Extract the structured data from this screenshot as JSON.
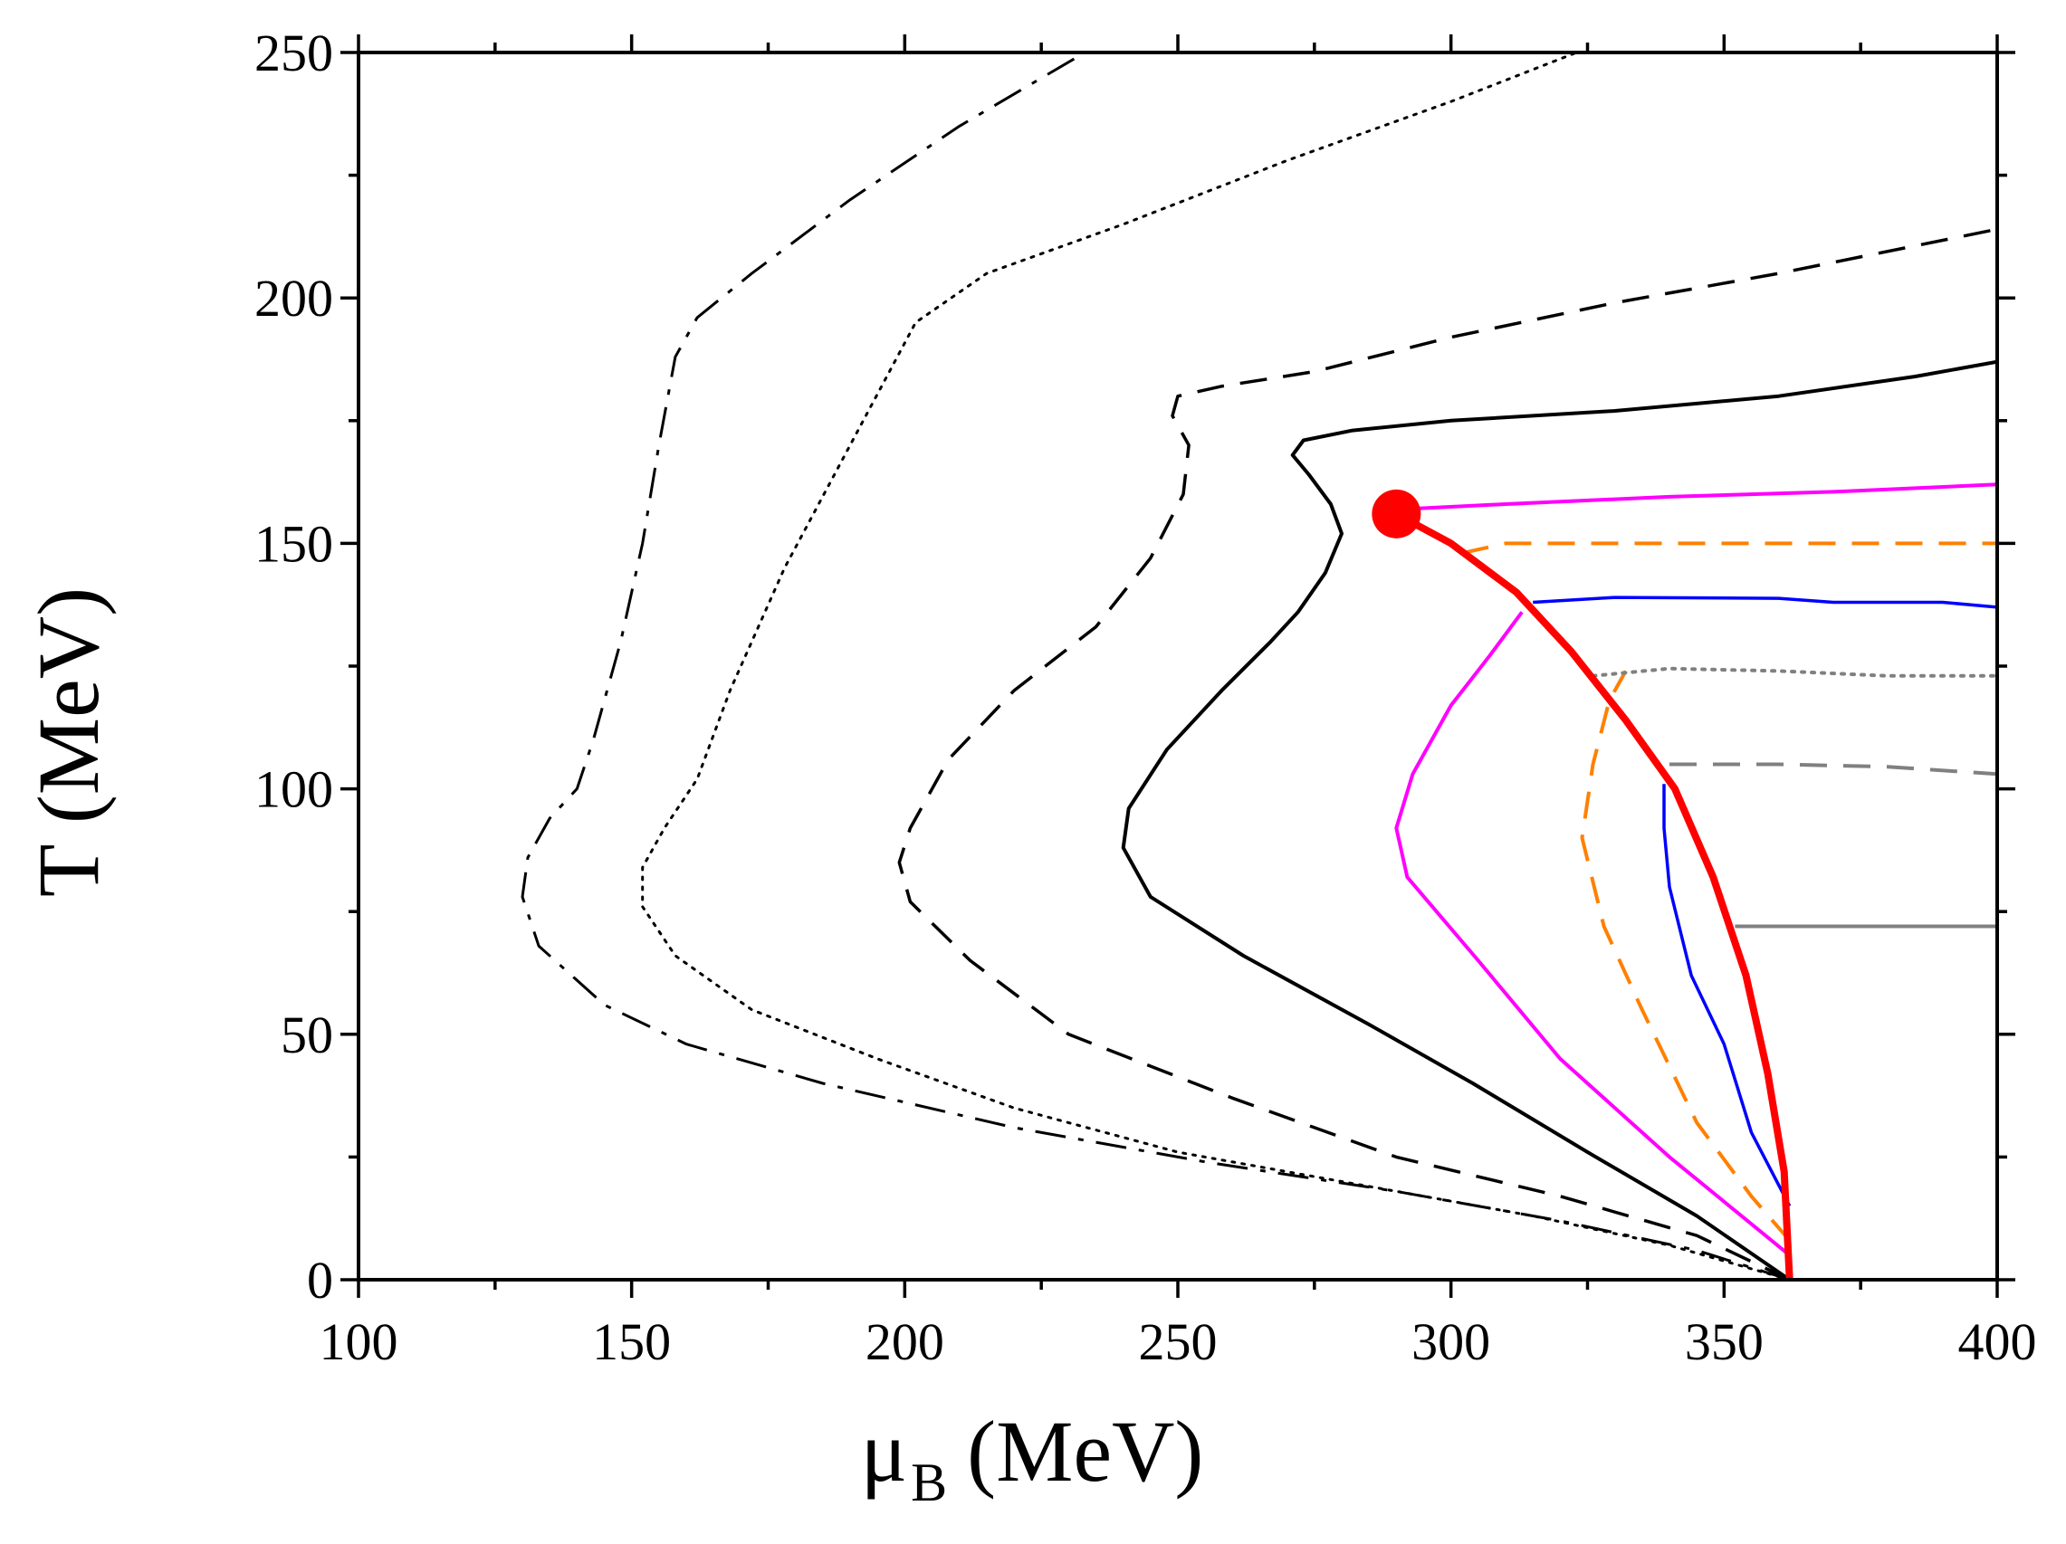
{
  "chart_data": {
    "type": "line",
    "title": "",
    "xlabel": "μ",
    "xlabel_subscript": "B",
    "xlabel_unit": "(MeV)",
    "ylabel": "T (MeV)",
    "xlim": [
      100,
      400
    ],
    "ylim": [
      0,
      250
    ],
    "x_ticks": [
      100,
      150,
      200,
      250,
      300,
      350,
      400
    ],
    "x_tick_labels": [
      "100",
      "150",
      "200",
      "250",
      "300",
      "350",
      "400"
    ],
    "y_ticks": [
      0,
      50,
      100,
      150,
      200,
      250
    ],
    "y_tick_labels": [
      "0",
      "50",
      "100",
      "150",
      "200",
      "250"
    ],
    "grid": false,
    "legend": "none",
    "series": [
      {
        "name": "dash-dot black",
        "color": "#000000",
        "dash": "dashdot",
        "width": 3,
        "points": [
          [
            362,
            0
          ],
          [
            345,
            6
          ],
          [
            320,
            12
          ],
          [
            290,
            18
          ],
          [
            255,
            24
          ],
          [
            220,
            31
          ],
          [
            185,
            40
          ],
          [
            160,
            48
          ],
          [
            145,
            56
          ],
          [
            133,
            68
          ],
          [
            130,
            78
          ],
          [
            131,
            86
          ],
          [
            135,
            94
          ],
          [
            140,
            100
          ],
          [
            143,
            110
          ],
          [
            148,
            130
          ],
          [
            152,
            150
          ],
          [
            155,
            170
          ],
          [
            158,
            188
          ],
          [
            162,
            196
          ],
          [
            172,
            205
          ],
          [
            190,
            220
          ],
          [
            210,
            235
          ],
          [
            233,
            250
          ]
        ]
      },
      {
        "name": "dotted black",
        "color": "#000000",
        "dash": "dotted",
        "width": 3,
        "points": [
          [
            362,
            0
          ],
          [
            340,
            7
          ],
          [
            315,
            13
          ],
          [
            285,
            19
          ],
          [
            250,
            26
          ],
          [
            220,
            35
          ],
          [
            195,
            45
          ],
          [
            172,
            55
          ],
          [
            158,
            66
          ],
          [
            152,
            76
          ],
          [
            152,
            84
          ],
          [
            156,
            92
          ],
          [
            162,
            102
          ],
          [
            168,
            120
          ],
          [
            178,
            145
          ],
          [
            190,
            170
          ],
          [
            202,
            195
          ],
          [
            215,
            205
          ],
          [
            240,
            215
          ],
          [
            270,
            228
          ],
          [
            300,
            240
          ],
          [
            323,
            250
          ]
        ]
      },
      {
        "name": "dashed black",
        "color": "#000000",
        "dash": "dashed",
        "width": 3.5,
        "points": [
          [
            362,
            0
          ],
          [
            345,
            9
          ],
          [
            320,
            17
          ],
          [
            290,
            25
          ],
          [
            260,
            37
          ],
          [
            230,
            50
          ],
          [
            212,
            65
          ],
          [
            201,
            77
          ],
          [
            199,
            85
          ],
          [
            201,
            92
          ],
          [
            208,
            106
          ],
          [
            220,
            120
          ],
          [
            235,
            133
          ],
          [
            245,
            147
          ],
          [
            251,
            160
          ],
          [
            252,
            170
          ],
          [
            249,
            176
          ],
          [
            250,
            180
          ],
          [
            258,
            182
          ],
          [
            275,
            185
          ],
          [
            300,
            192
          ],
          [
            330,
            199
          ],
          [
            360,
            205
          ],
          [
            400,
            214
          ]
        ]
      },
      {
        "name": "solid black",
        "color": "#000000",
        "dash": "solid",
        "width": 4,
        "points": [
          [
            362,
            0
          ],
          [
            345,
            13
          ],
          [
            325,
            26
          ],
          [
            304,
            40
          ],
          [
            285,
            52
          ],
          [
            262,
            66
          ],
          [
            245,
            78
          ],
          [
            240,
            88
          ],
          [
            241,
            96
          ],
          [
            248,
            108
          ],
          [
            258,
            120
          ],
          [
            267,
            130
          ],
          [
            272,
            136
          ],
          [
            277,
            144
          ],
          [
            280,
            152
          ],
          [
            278,
            158
          ],
          [
            274,
            164
          ],
          [
            271,
            168
          ],
          [
            273,
            171
          ],
          [
            282,
            173
          ],
          [
            300,
            175
          ],
          [
            330,
            177
          ],
          [
            360,
            180
          ],
          [
            385,
            184
          ],
          [
            400,
            187
          ]
        ]
      },
      {
        "name": "magenta",
        "color": "#ff00ff",
        "dash": "solid",
        "width": 4,
        "points": [
          [
            362,
            5
          ],
          [
            340,
            25
          ],
          [
            320,
            45
          ],
          [
            305,
            65
          ],
          [
            292,
            82
          ],
          [
            290,
            92
          ],
          [
            293,
            103
          ],
          [
            300,
            117
          ],
          [
            307,
            127
          ],
          [
            313,
            136
          ]
        ]
      },
      {
        "name": "magenta upper",
        "color": "#ff00ff",
        "dash": "solid",
        "width": 4,
        "points": [
          [
            292,
            157
          ],
          [
            310,
            158
          ],
          [
            340,
            159.5
          ],
          [
            370,
            160.5
          ],
          [
            400,
            162
          ]
        ]
      },
      {
        "name": "orange dashed",
        "color": "#ff8000",
        "dash": "dashed",
        "width": 4,
        "points": [
          [
            362,
            8
          ],
          [
            355,
            17
          ],
          [
            345,
            32
          ],
          [
            335,
            55
          ],
          [
            328,
            72
          ],
          [
            324,
            90
          ],
          [
            326,
            105
          ],
          [
            329,
            118
          ],
          [
            332,
            124
          ]
        ]
      },
      {
        "name": "orange dashed upper",
        "color": "#ff8000",
        "dash": "dashed",
        "width": 4,
        "points": [
          [
            302,
            148
          ],
          [
            310,
            150
          ],
          [
            340,
            150
          ],
          [
            370,
            150
          ],
          [
            400,
            150
          ]
        ]
      },
      {
        "name": "blue",
        "color": "#0000ff",
        "dash": "solid",
        "width": 3.5,
        "points": [
          [
            362,
            15
          ],
          [
            355,
            30
          ],
          [
            350,
            48
          ],
          [
            344,
            62
          ],
          [
            340,
            80
          ],
          [
            339,
            92
          ],
          [
            339,
            101
          ]
        ]
      },
      {
        "name": "blue upper",
        "color": "#0000ff",
        "dash": "solid",
        "width": 3.5,
        "points": [
          [
            315,
            138
          ],
          [
            330,
            139
          ],
          [
            360,
            138.8
          ],
          [
            370,
            138
          ],
          [
            390,
            138
          ],
          [
            400,
            137
          ]
        ]
      },
      {
        "name": "gray dotted",
        "color": "#808080",
        "dash": "dotted",
        "width": 4,
        "points": [
          [
            326,
            123
          ],
          [
            340,
            124.5
          ],
          [
            360,
            124
          ],
          [
            380,
            123
          ],
          [
            400,
            123
          ]
        ]
      },
      {
        "name": "gray dashed",
        "color": "#808080",
        "dash": "dashed",
        "width": 4,
        "points": [
          [
            340,
            105
          ],
          [
            360,
            105
          ],
          [
            380,
            104.5
          ],
          [
            400,
            103
          ]
        ]
      },
      {
        "name": "gray solid",
        "color": "#808080",
        "dash": "solid",
        "width": 4,
        "points": [
          [
            352,
            72
          ],
          [
            370,
            72
          ],
          [
            400,
            72
          ]
        ]
      },
      {
        "name": "red boundary",
        "color": "#ff0000",
        "dash": "solid",
        "width": 8,
        "points": [
          [
            290,
            156
          ],
          [
            300,
            150
          ],
          [
            312,
            140
          ],
          [
            322,
            128
          ],
          [
            332,
            114
          ],
          [
            341,
            100
          ],
          [
            348,
            82
          ],
          [
            354,
            62
          ],
          [
            358,
            42
          ],
          [
            361,
            22
          ],
          [
            362,
            0
          ]
        ]
      }
    ],
    "markers": [
      {
        "name": "critical point",
        "x": 290,
        "y": 156,
        "color": "#ff0000"
      }
    ]
  }
}
